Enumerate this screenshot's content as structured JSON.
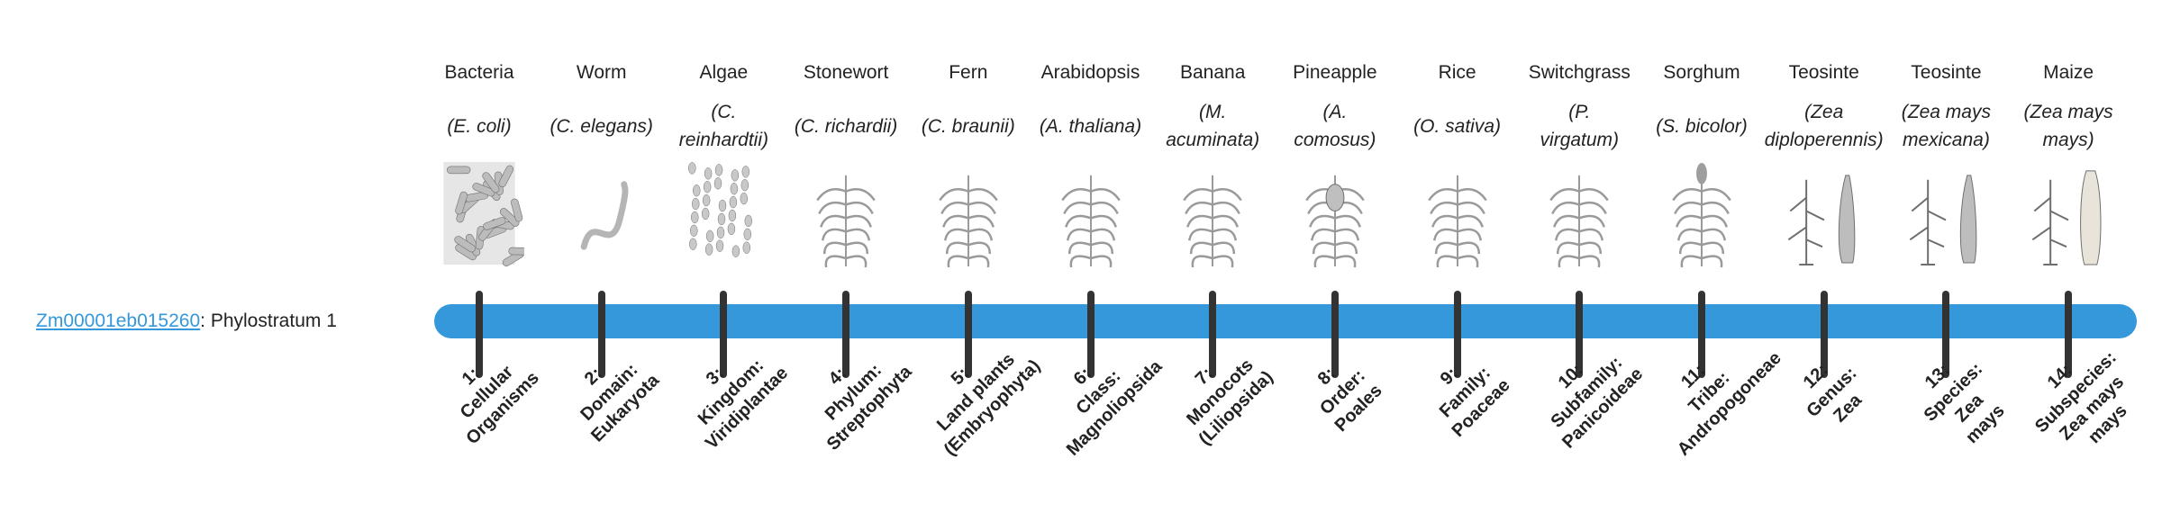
{
  "gene": {
    "id": "Zm00001eb015260",
    "separator": ": ",
    "stratum": "Phylostratum 1"
  },
  "colors": {
    "bar": "#3498db",
    "tick": "#333333",
    "link": "#3498db"
  },
  "columns": [
    {
      "common": "Bacteria",
      "scientific": "(E. coli)",
      "icon": "bacteria-illustration",
      "stratum": "1:\nCellular\nOrganisms"
    },
    {
      "common": "Worm",
      "scientific": "(C. elegans)",
      "icon": "worm-illustration",
      "stratum": "2:\nDomain:\nEukaryota"
    },
    {
      "common": "Algae",
      "scientific": "(C.\nreinhardtii)",
      "icon": "algae-illustration",
      "stratum": "3:\nKingdom:\nViridiplantae"
    },
    {
      "common": "Stonewort",
      "scientific": "(C. richardii)",
      "icon": "stonewort-illustration",
      "stratum": "4:\nPhylum:\nStreptophyta"
    },
    {
      "common": "Fern",
      "scientific": "(C. braunii)",
      "icon": "fern-illustration",
      "stratum": "5:\nLand plants\n(Embryophyta)"
    },
    {
      "common": "Arabidopsis",
      "scientific": "(A. thaliana)",
      "icon": "arabidopsis-illustration",
      "stratum": "6:\nClass:\nMagnoliopsida"
    },
    {
      "common": "Banana",
      "scientific": "(M.\nacuminata)",
      "icon": "banana-illustration",
      "stratum": "7:\nMonocots\n(Liliopsida)"
    },
    {
      "common": "Pineapple",
      "scientific": "(A.\ncomosus)",
      "icon": "pineapple-illustration",
      "stratum": "8:\nOrder:\nPoales"
    },
    {
      "common": "Rice",
      "scientific": "(O. sativa)",
      "icon": "rice-illustration",
      "stratum": "9:\nFamily:\nPoaceae"
    },
    {
      "common": "Switchgrass",
      "scientific": "(P.\nvirgatum)",
      "icon": "switchgrass-illustration",
      "stratum": "10:\nSubfamily:\nPanicoideae"
    },
    {
      "common": "Sorghum",
      "scientific": "(S. bicolor)",
      "icon": "sorghum-illustration",
      "stratum": "11:\nTribe:\nAndropogoneae"
    },
    {
      "common": "Teosinte",
      "scientific": "(Zea\ndiploperennis)",
      "icon": "teosinte-illustration",
      "stratum": "12:\nGenus:\nZea"
    },
    {
      "common": "Teosinte",
      "scientific": "(Zea mays\nmexicana)",
      "icon": "teosinte-illustration",
      "stratum": "13:\nSpecies:\nZea\nmays"
    },
    {
      "common": "Maize",
      "scientific": "(Zea mays\nmays)",
      "icon": "maize-illustration",
      "stratum": "14:\nSubspecies:\nZea mays\nmays"
    }
  ]
}
